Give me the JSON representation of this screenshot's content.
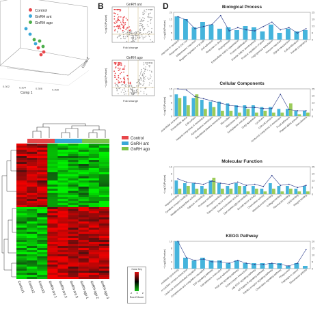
{
  "panels": {
    "b": "B",
    "d": "D"
  },
  "pca": {
    "legend": [
      {
        "label": "Control",
        "color": "#e8474b"
      },
      {
        "label": "GnRH ant",
        "color": "#3aa8d8"
      },
      {
        "label": "GnRH ago",
        "color": "#4cae4c"
      }
    ],
    "xlabel": "Comp 1",
    "ylabel": "Comp 2",
    "xticks": [
      "0.302",
      "0.304",
      "0.306",
      "0.308"
    ],
    "yticks": [
      "-0.6",
      "-0.4",
      "-0.2",
      "0.0",
      "0.2",
      "0.4",
      "0.6"
    ]
  },
  "volcano": [
    {
      "title": "GnRH ant",
      "ylabel": "−Log10(Pvalue)",
      "xlabel": "Fold change"
    },
    {
      "title": "GnRH ago",
      "ylabel": "−Log10(Pvalue)",
      "xlabel": "Fold change"
    }
  ],
  "heatmap": {
    "legend": [
      {
        "label": "Control",
        "color": "#e8474b"
      },
      {
        "label": "GnRH ant",
        "color": "#3aa8d8"
      },
      {
        "label": "GnRH ago",
        "color": "#7cc34a"
      }
    ],
    "columns": [
      "Control1",
      "Control2",
      "Control3",
      "GnRH ant 1",
      "GnRH ant 2",
      "GnRH ant 3",
      "GnRH ago 1",
      "GnRH ago 2",
      "GnRH ago 3"
    ],
    "colorkey_title": "Color Key",
    "colorkey_sub": "Row Z-Score",
    "colorkey_ticks": [
      "-2",
      "0",
      "2"
    ]
  },
  "chart_data": [
    {
      "type": "bar",
      "title": "Biological Process",
      "ylabel": "−Log10(Pvalue)",
      "categories": [
        "Response to estradiol",
        "Response to zinc ion",
        "Inflammatory response",
        "Negative regulation of growth",
        "Cell adhesion",
        "Response to drug",
        "Angiogenesis",
        "Extracellular matrix organization",
        "Protein stabilization",
        "Ovarian follicle development",
        "Positive regulation of gene",
        "Angiogenesis stimulation",
        "Immune response",
        "Signal transduction",
        "Cell proliferation",
        "Female pregnancy"
      ],
      "series": [],
      "bars": [
        17,
        15,
        9,
        13,
        11,
        8,
        9,
        7,
        10,
        9,
        6,
        11,
        5,
        8,
        6,
        7
      ],
      "counts": [
        21,
        18,
        10,
        12,
        14,
        22,
        8,
        11,
        9,
        8,
        12,
        16,
        9,
        11,
        6,
        10
      ],
      "ylim": [
        0,
        20
      ],
      "y2lim": [
        0,
        25
      ]
    },
    {
      "type": "bar",
      "title": "Cellular Components",
      "ylabel": "−Log10(Pvalue)",
      "categories": [
        "Extracellular exosome",
        "Extracellular space",
        "Cell surface",
        "Integral component of membrane",
        "Apical plasma membrane",
        "Basolateral plasma membrane",
        "Microvillus",
        "Membrane raft",
        "Endoplasmic reticulum",
        "Golgi apparatus",
        "Lysosome",
        "Cell-cell junction",
        "Anchored component of membrane",
        "Focal adhesion",
        "Platelet alpha granule",
        "Sarcolemma"
      ],
      "series": [],
      "bars": [
        12,
        11,
        10,
        9,
        8,
        8,
        7,
        6,
        6,
        6,
        5,
        5,
        4,
        4,
        3,
        3
      ],
      "bars2": [
        10,
        6,
        12,
        4,
        5,
        3,
        3,
        2,
        4,
        2,
        3,
        2,
        2,
        7,
        1,
        2
      ],
      "counts": [
        25,
        24,
        18,
        16,
        14,
        12,
        10,
        9,
        8,
        8,
        7,
        7,
        20,
        6,
        5,
        5
      ],
      "ylim": [
        0,
        15
      ],
      "y2lim": [
        0,
        25
      ]
    },
    {
      "type": "bar",
      "title": "Molecular Function",
      "ylabel": "−Log10(Pvalue)",
      "categories": [
        "Heparin binding",
        "Cytokine receptor binding",
        "Metalloendopeptidase activity",
        "Calcium ion binding",
        "Protease binding",
        "Receptor binding",
        "Transcription factor binding",
        "Serine hydrolase activity",
        "Glycosaminoglycan binding",
        "Growth factor activity",
        "Chemokine activity",
        "Identical protein binding",
        "Collagen binding",
        "Fibronectin binding",
        "Lipid binding",
        "Integrin binding"
      ],
      "series": [],
      "bars": [
        5,
        4,
        4,
        3,
        5,
        4,
        3,
        4,
        3,
        3,
        2,
        4,
        3,
        3,
        2,
        3
      ],
      "bars2": [
        2,
        3,
        2,
        2,
        6,
        2,
        2,
        3,
        1,
        2,
        1,
        2,
        1,
        2,
        1,
        1
      ],
      "counts": [
        14,
        11,
        10,
        9,
        12,
        10,
        9,
        11,
        8,
        9,
        7,
        17,
        8,
        9,
        6,
        8
      ],
      "ylim": [
        0,
        10
      ],
      "y2lim": [
        0,
        25
      ]
    },
    {
      "type": "bar",
      "title": "KEGG Pathway",
      "ylabel": "−Log10(Pvalue)",
      "categories": [
        "Natural killer cell mediated cytotoxicity",
        "Cytokine-cytokine receptor interaction",
        "Leukocyte transendothelial migration",
        "Complement and coagulation cascades",
        "TNF signaling pathway",
        "Cell adhesion molecules",
        "Focal adhesion",
        "PI3K-Akt signaling pathway",
        "ECM-receptor interaction",
        "Jak-STAT signaling pathway",
        "NF-kappa B signaling pathway",
        "Toll-like receptor signaling pathway",
        "Chemokine signaling pathway",
        "Phagosome",
        "Pathways in cancer",
        "Rheumatoid arthritis"
      ],
      "series": [],
      "bars": [
        10,
        4,
        3,
        4,
        3,
        3,
        2,
        3,
        2,
        2,
        2,
        2,
        2,
        1,
        2,
        1
      ],
      "counts": [
        20,
        8,
        6,
        7,
        5,
        5,
        4,
        6,
        4,
        3,
        3,
        4,
        3,
        2,
        4,
        14
      ],
      "ylim": [
        0,
        10
      ],
      "y2lim": [
        0,
        20
      ]
    }
  ]
}
